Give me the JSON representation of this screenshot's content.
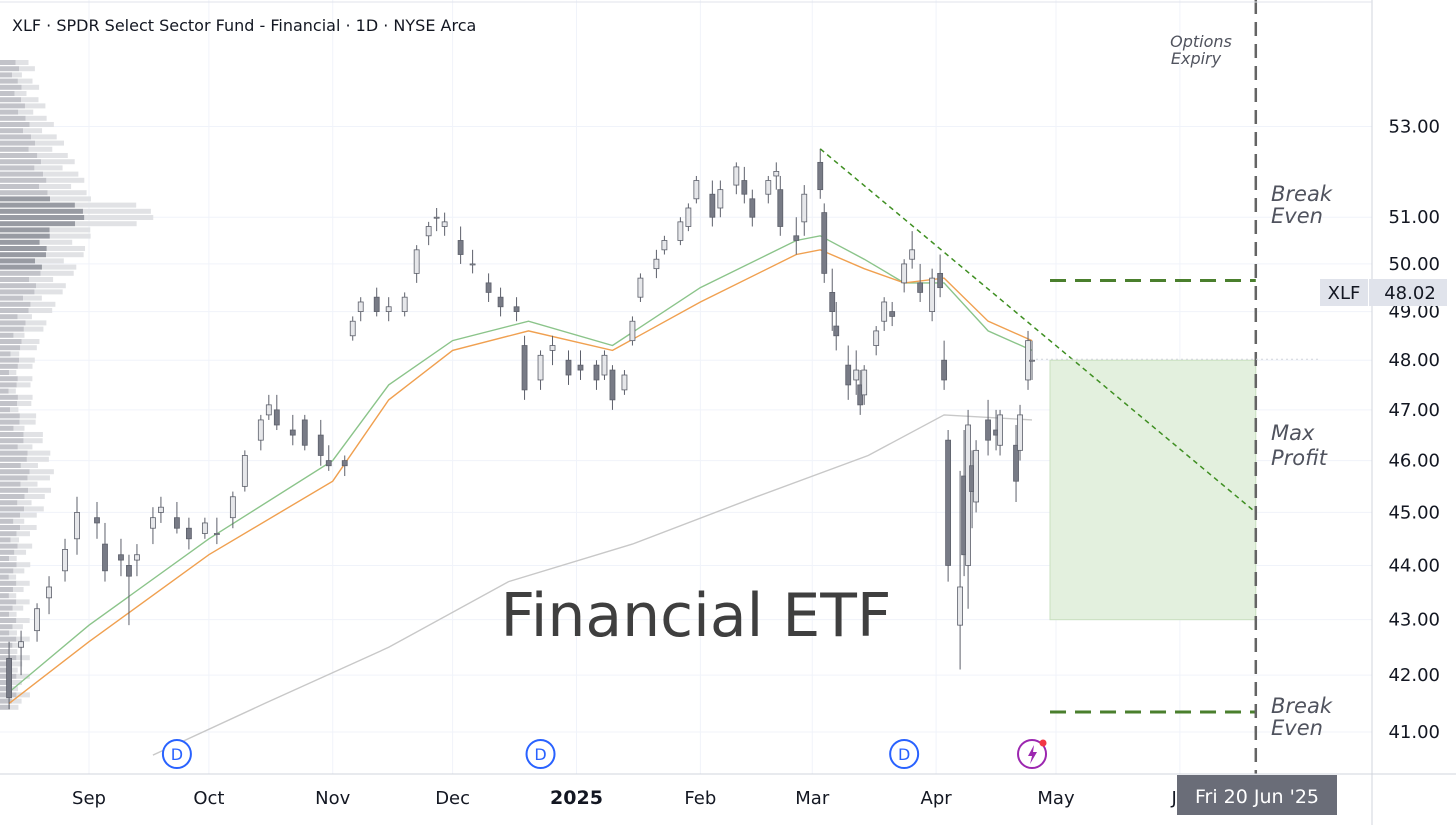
{
  "header": {
    "symbol_line": "XLF · SPDR Select Sector Fund - Financial · 1D · NYSE Arca"
  },
  "watermark": "Financial ETF",
  "annotations": {
    "options_expiry": [
      "Options",
      "Expiry"
    ],
    "break_even_upper": [
      "Break",
      "Even"
    ],
    "break_even_lower": [
      "Break",
      "Even"
    ],
    "max_profit": [
      "Max",
      "Profit"
    ]
  },
  "price_tag": {
    "ticker": "XLF",
    "value": "48.02"
  },
  "crosshair_date_label": "Fri 20 Jun '25",
  "dividend_marker": "D",
  "colors": {
    "candle": "#787b86",
    "ma_green": "#8bc48a",
    "ma_orange": "#f0a050",
    "ma_gray": "#c8c8c8",
    "trendline": "#3f8f22",
    "breakeven": "#4a7f2d",
    "profit_zone": "#e3f0de",
    "expiry_line": "#646464",
    "dividend": "#2962ff",
    "event_icon": "#9c27b0"
  },
  "chart_data": {
    "type": "candlestick",
    "title": "XLF · SPDR Select Sector Fund - Financial · 1D · NYSE Arca",
    "price_axis": {
      "ticks": [
        "53.00",
        "51.00",
        "50.00",
        "49.00",
        "48.00",
        "47.00",
        "46.00",
        "45.00",
        "44.00",
        "43.00",
        "42.00",
        "41.00"
      ],
      "log_scale": true
    },
    "time_axis": {
      "ticks": [
        {
          "label": "Sep",
          "date": "2024-09-01"
        },
        {
          "label": "Oct",
          "date": "2024-10-01"
        },
        {
          "label": "Nov",
          "date": "2024-11-01"
        },
        {
          "label": "Dec",
          "date": "2024-12-01"
        },
        {
          "label": "2025",
          "date": "2025-01-01",
          "bold": true
        },
        {
          "label": "Feb",
          "date": "2025-02-01"
        },
        {
          "label": "Mar",
          "date": "2025-03-01"
        },
        {
          "label": "Apr",
          "date": "2025-04-01"
        },
        {
          "label": "May",
          "date": "2025-05-01"
        },
        {
          "label": "Ju",
          "date": "2025-06-01"
        }
      ]
    },
    "series": [
      {
        "name": "XLF daily",
        "type": "candlestick",
        "ohlc": [
          [
            "2024-08-12",
            42.3,
            42.6,
            41.4,
            41.6
          ],
          [
            "2024-08-15",
            42.5,
            42.8,
            42.0,
            42.6
          ],
          [
            "2024-08-19",
            42.8,
            43.3,
            42.6,
            43.2
          ],
          [
            "2024-08-22",
            43.4,
            43.8,
            43.1,
            43.6
          ],
          [
            "2024-08-26",
            43.9,
            44.5,
            43.7,
            44.3
          ],
          [
            "2024-08-29",
            44.5,
            45.3,
            44.2,
            45.0
          ],
          [
            "2024-09-03",
            44.9,
            45.2,
            44.5,
            44.8
          ],
          [
            "2024-09-05",
            44.4,
            44.8,
            43.7,
            43.9
          ],
          [
            "2024-09-09",
            44.2,
            44.5,
            43.8,
            44.1
          ],
          [
            "2024-09-11",
            44.0,
            44.2,
            42.9,
            43.8
          ],
          [
            "2024-09-13",
            44.1,
            44.4,
            43.8,
            44.2
          ],
          [
            "2024-09-17",
            44.7,
            45.1,
            44.4,
            44.9
          ],
          [
            "2024-09-19",
            45.0,
            45.3,
            44.8,
            45.1
          ],
          [
            "2024-09-23",
            44.9,
            45.2,
            44.6,
            44.7
          ],
          [
            "2024-09-26",
            44.7,
            44.9,
            44.3,
            44.5
          ],
          [
            "2024-09-30",
            44.6,
            44.9,
            44.5,
            44.8
          ],
          [
            "2024-10-03",
            44.6,
            44.9,
            44.4,
            44.6
          ],
          [
            "2024-10-07",
            44.9,
            45.4,
            44.7,
            45.3
          ],
          [
            "2024-10-10",
            45.5,
            46.2,
            45.4,
            46.1
          ],
          [
            "2024-10-14",
            46.4,
            46.9,
            46.2,
            46.8
          ],
          [
            "2024-10-16",
            46.9,
            47.3,
            46.8,
            47.1
          ],
          [
            "2024-10-18",
            47.0,
            47.3,
            46.6,
            46.7
          ],
          [
            "2024-10-22",
            46.6,
            46.9,
            46.3,
            46.5
          ],
          [
            "2024-10-25",
            46.8,
            46.9,
            46.2,
            46.3
          ],
          [
            "2024-10-29",
            46.5,
            46.8,
            45.9,
            46.1
          ],
          [
            "2024-10-31",
            46.0,
            46.3,
            45.8,
            45.9
          ],
          [
            "2024-11-04",
            46.0,
            46.1,
            45.7,
            45.9
          ],
          [
            "2024-11-06",
            48.5,
            48.9,
            48.4,
            48.8
          ],
          [
            "2024-11-08",
            49.0,
            49.3,
            48.8,
            49.2
          ],
          [
            "2024-11-12",
            49.3,
            49.5,
            48.9,
            49.0
          ],
          [
            "2024-11-15",
            49.0,
            49.3,
            48.8,
            49.1
          ],
          [
            "2024-11-19",
            49.0,
            49.4,
            48.9,
            49.3
          ],
          [
            "2024-11-22",
            49.8,
            50.4,
            49.6,
            50.3
          ],
          [
            "2024-11-25",
            50.6,
            50.9,
            50.4,
            50.8
          ],
          [
            "2024-11-27",
            51.0,
            51.2,
            50.7,
            51.0
          ],
          [
            "2024-11-29",
            50.8,
            51.1,
            50.6,
            50.9
          ],
          [
            "2024-12-03",
            50.5,
            50.8,
            50.0,
            50.2
          ],
          [
            "2024-12-06",
            50.0,
            50.3,
            49.8,
            50.0
          ],
          [
            "2024-12-10",
            49.6,
            49.8,
            49.2,
            49.4
          ],
          [
            "2024-12-13",
            49.3,
            49.5,
            48.9,
            49.1
          ],
          [
            "2024-12-17",
            49.1,
            49.3,
            48.8,
            49.0
          ],
          [
            "2024-12-19",
            48.3,
            48.5,
            47.2,
            47.4
          ],
          [
            "2024-12-23",
            47.6,
            48.2,
            47.4,
            48.1
          ],
          [
            "2024-12-26",
            48.2,
            48.5,
            47.9,
            48.3
          ],
          [
            "2024-12-30",
            48.0,
            48.2,
            47.5,
            47.7
          ],
          [
            "2025-01-02",
            47.9,
            48.2,
            47.6,
            47.8
          ],
          [
            "2025-01-06",
            47.9,
            48.0,
            47.4,
            47.6
          ],
          [
            "2025-01-08",
            47.7,
            48.2,
            47.6,
            48.1
          ],
          [
            "2025-01-10",
            47.8,
            47.9,
            47.0,
            47.2
          ],
          [
            "2025-01-13",
            47.4,
            47.8,
            47.3,
            47.7
          ],
          [
            "2025-01-15",
            48.4,
            48.9,
            48.3,
            48.8
          ],
          [
            "2025-01-17",
            49.3,
            49.8,
            49.2,
            49.7
          ],
          [
            "2025-01-21",
            49.9,
            50.3,
            49.7,
            50.1
          ],
          [
            "2025-01-23",
            50.3,
            50.6,
            50.2,
            50.5
          ],
          [
            "2025-01-27",
            50.5,
            51.0,
            50.4,
            50.9
          ],
          [
            "2025-01-29",
            50.8,
            51.3,
            50.7,
            51.2
          ],
          [
            "2025-01-31",
            51.4,
            51.9,
            51.3,
            51.8
          ],
          [
            "2025-02-04",
            51.5,
            51.8,
            50.8,
            51.0
          ],
          [
            "2025-02-06",
            51.2,
            51.8,
            51.0,
            51.6
          ],
          [
            "2025-02-10",
            51.7,
            52.2,
            51.5,
            52.1
          ],
          [
            "2025-02-12",
            51.8,
            52.1,
            51.3,
            51.5
          ],
          [
            "2025-02-14",
            51.4,
            51.6,
            50.8,
            51.0
          ],
          [
            "2025-02-18",
            51.5,
            51.9,
            51.3,
            51.8
          ],
          [
            "2025-02-20",
            51.9,
            52.2,
            51.6,
            52.0
          ],
          [
            "2025-02-21",
            51.6,
            51.9,
            50.6,
            50.8
          ],
          [
            "2025-02-25",
            50.6,
            51.0,
            50.2,
            50.5
          ],
          [
            "2025-02-27",
            50.9,
            51.7,
            50.6,
            51.5
          ],
          [
            "2025-03-03",
            52.2,
            52.5,
            51.4,
            51.6
          ],
          [
            "2025-03-04",
            51.1,
            51.3,
            49.6,
            49.8
          ],
          [
            "2025-03-06",
            49.4,
            49.9,
            48.6,
            49.0
          ],
          [
            "2025-03-07",
            48.7,
            49.2,
            48.2,
            48.5
          ],
          [
            "2025-03-10",
            47.9,
            48.3,
            47.2,
            47.5
          ],
          [
            "2025-03-12",
            47.6,
            48.2,
            47.3,
            47.8
          ],
          [
            "2025-03-13",
            47.5,
            47.8,
            46.9,
            47.1
          ],
          [
            "2025-03-14",
            47.3,
            47.9,
            47.1,
            47.8
          ],
          [
            "2025-03-17",
            48.3,
            48.7,
            48.1,
            48.6
          ],
          [
            "2025-03-19",
            48.8,
            49.3,
            48.6,
            49.2
          ],
          [
            "2025-03-21",
            49.0,
            49.2,
            48.7,
            48.9
          ],
          [
            "2025-03-24",
            49.6,
            50.1,
            49.4,
            50.0
          ],
          [
            "2025-03-26",
            50.1,
            50.7,
            49.9,
            50.3
          ],
          [
            "2025-03-28",
            49.6,
            50.0,
            49.2,
            49.4
          ],
          [
            "2025-03-31",
            49.0,
            49.9,
            48.8,
            49.7
          ],
          [
            "2025-04-02",
            49.8,
            50.2,
            49.3,
            49.5
          ],
          [
            "2025-04-03",
            48.0,
            48.4,
            47.4,
            47.6
          ],
          [
            "2025-04-04",
            46.4,
            46.6,
            43.7,
            44.0
          ],
          [
            "2025-04-07",
            42.9,
            45.8,
            42.1,
            43.6
          ],
          [
            "2025-04-08",
            45.7,
            46.6,
            43.8,
            44.2
          ],
          [
            "2025-04-09",
            44.0,
            47.0,
            43.2,
            46.7
          ],
          [
            "2025-04-10",
            45.9,
            46.2,
            44.7,
            45.4
          ],
          [
            "2025-04-11",
            45.2,
            46.4,
            45.0,
            46.2
          ],
          [
            "2025-04-14",
            46.8,
            47.2,
            46.1,
            46.4
          ],
          [
            "2025-04-16",
            46.6,
            47.0,
            46.2,
            46.5
          ],
          [
            "2025-04-17",
            46.3,
            47.0,
            46.1,
            46.9
          ],
          [
            "2025-04-21",
            46.3,
            46.7,
            45.2,
            45.6
          ],
          [
            "2025-04-22",
            46.2,
            47.1,
            46.0,
            46.9
          ],
          [
            "2025-04-24",
            47.6,
            48.6,
            47.4,
            48.4
          ],
          [
            "2025-04-25",
            48.0,
            48.4,
            47.6,
            48.0
          ]
        ]
      },
      {
        "name": "EMA (green)",
        "type": "line",
        "points": [
          [
            "2024-08-12",
            41.7
          ],
          [
            "2024-09-01",
            42.9
          ],
          [
            "2024-10-01",
            44.5
          ],
          [
            "2024-11-01",
            46.0
          ],
          [
            "2024-11-15",
            47.5
          ],
          [
            "2024-12-01",
            48.4
          ],
          [
            "2024-12-20",
            48.8
          ],
          [
            "2025-01-10",
            48.3
          ],
          [
            "2025-02-01",
            49.5
          ],
          [
            "2025-02-25",
            50.5
          ],
          [
            "2025-03-03",
            50.6
          ],
          [
            "2025-03-14",
            50.1
          ],
          [
            "2025-03-24",
            49.6
          ],
          [
            "2025-04-03",
            49.6
          ],
          [
            "2025-04-14",
            48.6
          ],
          [
            "2025-04-25",
            48.2
          ]
        ]
      },
      {
        "name": "EMA (orange)",
        "type": "line",
        "points": [
          [
            "2024-08-12",
            41.5
          ],
          [
            "2024-09-01",
            42.6
          ],
          [
            "2024-10-01",
            44.2
          ],
          [
            "2024-11-01",
            45.6
          ],
          [
            "2024-11-15",
            47.2
          ],
          [
            "2024-12-01",
            48.2
          ],
          [
            "2024-12-20",
            48.6
          ],
          [
            "2025-01-10",
            48.2
          ],
          [
            "2025-02-01",
            49.2
          ],
          [
            "2025-02-25",
            50.2
          ],
          [
            "2025-03-03",
            50.3
          ],
          [
            "2025-03-14",
            49.9
          ],
          [
            "2025-03-24",
            49.6
          ],
          [
            "2025-04-03",
            49.7
          ],
          [
            "2025-04-14",
            48.8
          ],
          [
            "2025-04-25",
            48.4
          ]
        ]
      },
      {
        "name": "SMA (gray)",
        "type": "line",
        "points": [
          [
            "2024-09-17",
            40.6
          ],
          [
            "2024-10-15",
            41.5
          ],
          [
            "2024-11-15",
            42.5
          ],
          [
            "2024-12-15",
            43.7
          ],
          [
            "2025-01-15",
            44.4
          ],
          [
            "2025-02-15",
            45.3
          ],
          [
            "2025-03-15",
            46.1
          ],
          [
            "2025-04-03",
            46.9
          ],
          [
            "2025-04-25",
            46.8
          ]
        ]
      }
    ],
    "drawings": {
      "trendline": {
        "from": [
          "2025-03-03",
          52.5
        ],
        "to": [
          "2025-06-20",
          45.0
        ],
        "style": "dashed"
      },
      "break_even_upper": {
        "price": 49.65,
        "from": "2025-04-28",
        "to": "2025-06-20"
      },
      "break_even_lower": {
        "price": 41.35,
        "from": "2025-04-28",
        "to": "2025-06-20"
      },
      "max_profit_zone": {
        "price_top": 48.0,
        "price_bottom": 43.0,
        "from": "2025-04-28",
        "to": "2025-06-20"
      },
      "options_expiry_date": "2025-06-20"
    },
    "dividend_dates": [
      "2024-09-23",
      "2024-12-23",
      "2025-03-24"
    ],
    "event_marker_date": "2025-04-25",
    "last_price": 48.02,
    "volume_profile": "present (left-side horizontal histogram)",
    "grid": true
  }
}
